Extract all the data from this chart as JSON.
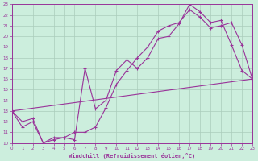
{
  "xlabel": "Windchill (Refroidissement éolien,°C)",
  "bg_color": "#cceedd",
  "grid_color": "#aaccbb",
  "line_color": "#993399",
  "xlim": [
    0,
    23
  ],
  "ylim": [
    10,
    23
  ],
  "xticks": [
    0,
    1,
    2,
    3,
    4,
    5,
    6,
    7,
    8,
    9,
    10,
    11,
    12,
    13,
    14,
    15,
    16,
    17,
    18,
    19,
    20,
    21,
    22,
    23
  ],
  "yticks": [
    10,
    11,
    12,
    13,
    14,
    15,
    16,
    17,
    18,
    19,
    20,
    21,
    22,
    23
  ],
  "line1_x": [
    0,
    1,
    2,
    3,
    4,
    5,
    6,
    7,
    8,
    9,
    10,
    11,
    12,
    13,
    14,
    15,
    16,
    17,
    18,
    19,
    20,
    21,
    22,
    23
  ],
  "line1_y": [
    13.0,
    11.5,
    12.0,
    10.0,
    10.3,
    10.5,
    10.3,
    17.0,
    13.2,
    14.0,
    16.8,
    17.8,
    17.0,
    18.0,
    19.8,
    20.0,
    21.2,
    23.0,
    22.3,
    21.3,
    21.5,
    19.2,
    16.8,
    16.0
  ],
  "line2_x": [
    0,
    1,
    2,
    3,
    4,
    5,
    6,
    7,
    8,
    9,
    10,
    11,
    12,
    13,
    14,
    15,
    16,
    17,
    18,
    19,
    20,
    21,
    22,
    23
  ],
  "line2_y": [
    13.0,
    12.0,
    12.3,
    10.0,
    10.5,
    10.5,
    11.0,
    11.0,
    11.5,
    13.3,
    15.5,
    16.8,
    18.0,
    19.0,
    20.5,
    21.0,
    21.3,
    22.5,
    21.8,
    20.8,
    21.0,
    21.3,
    19.2,
    16.0
  ],
  "line3_x": [
    0,
    23
  ],
  "line3_y": [
    13.0,
    16.0
  ]
}
